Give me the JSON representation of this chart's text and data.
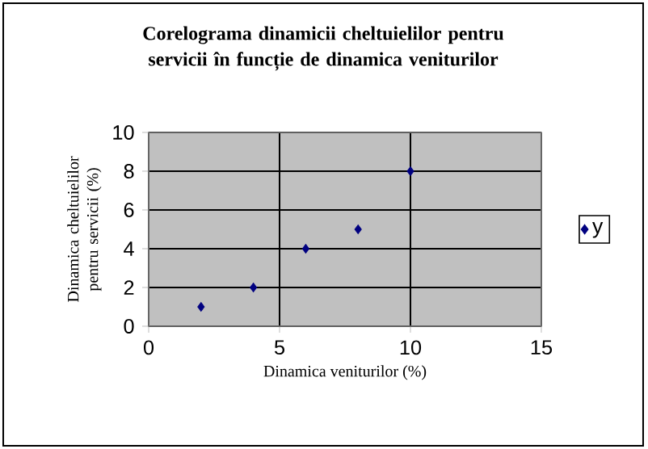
{
  "chart_data": {
    "type": "scatter",
    "title": "Corelograma dinamicii cheltuielilor pentru servicii în funcție de dinamica veniturilor",
    "xlabel": "Dinamica  veniturilor (%)",
    "ylabel": "Dinamica cheltuielilor pentru  servicii (%)",
    "xlim": [
      0,
      15
    ],
    "xticks": [
      0,
      5,
      10,
      15
    ],
    "ylim": [
      0,
      10
    ],
    "yticks": [
      0,
      2,
      4,
      6,
      8,
      10
    ],
    "grid": true,
    "legend": "right",
    "marker": "diamond",
    "series": [
      {
        "name": "y",
        "color": "#000080",
        "x": [
          2,
          4,
          6,
          8,
          10
        ],
        "values": [
          1,
          2,
          4,
          5,
          8
        ]
      }
    ]
  }
}
